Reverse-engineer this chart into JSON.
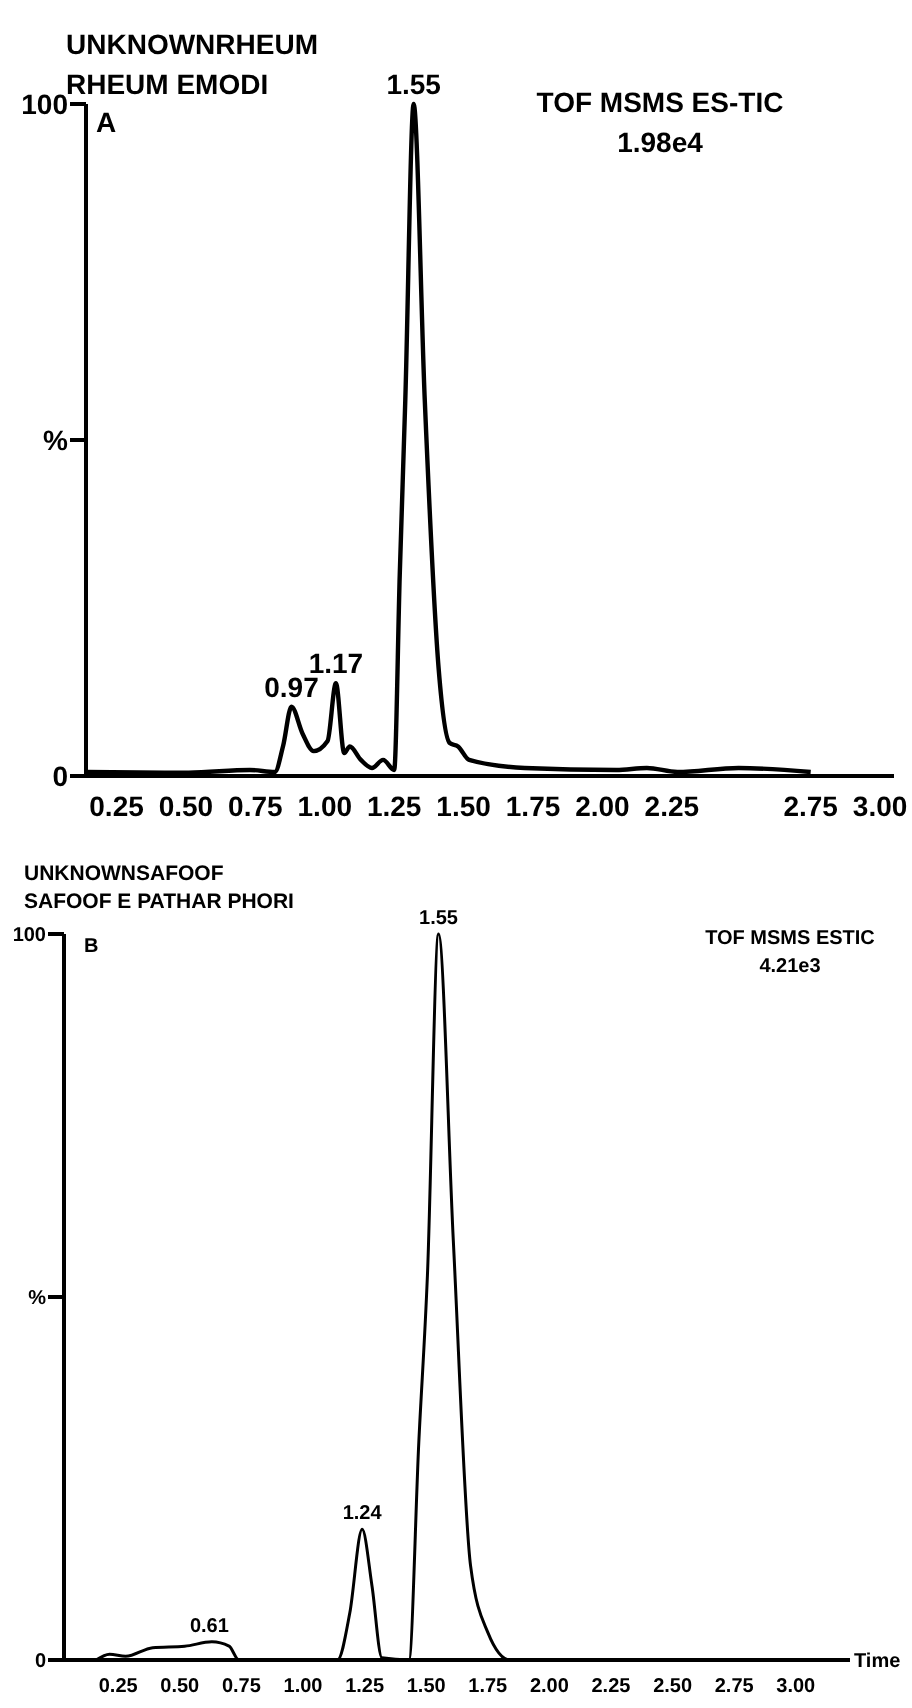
{
  "chart_data": [
    {
      "type": "line",
      "title": "UNKNOWNRHEUM",
      "subtitle": "RHEUM EMODI",
      "annotations": [
        "A",
        "TOF MSMS ES-TIC",
        "1.98e4",
        {
          "text": "1.55",
          "x": 1.32,
          "y": 100
        },
        {
          "text": "0.97",
          "x": 0.88,
          "y": 10.3
        },
        {
          "text": "1.17",
          "x": 1.04,
          "y": 13.8
        }
      ],
      "x": [
        0.14,
        0.51,
        0.73,
        0.82,
        0.85,
        0.88,
        0.92,
        0.96,
        1.01,
        1.04,
        1.07,
        1.09,
        1.13,
        1.17,
        1.21,
        1.25,
        1.27,
        1.29,
        1.32,
        1.36,
        1.41,
        1.45,
        1.48,
        1.52,
        1.72,
        2.05,
        2.16,
        2.27,
        2.49,
        2.75
      ],
      "series": [
        {
          "color": "#000000",
          "values": [
            0.6,
            0.5,
            0.9,
            0.6,
            4.5,
            10.3,
            6.3,
            3.7,
            5.2,
            13.8,
            3.4,
            4.4,
            2.4,
            1.2,
            2.4,
            0.9,
            30,
            56,
            100,
            56,
            16,
            4.9,
            4.4,
            2.4,
            1.2,
            0.9,
            1.2,
            0.6,
            1.2,
            0.6
          ]
        }
      ],
      "xlim": [
        0.14,
        3.05
      ],
      "xticks": [
        {
          "value": 0.25,
          "label": "0.25"
        },
        {
          "value": 0.5,
          "label": "0.50"
        },
        {
          "value": 0.75,
          "label": "0.75"
        },
        {
          "value": 1,
          "label": "1.00"
        },
        {
          "value": 1.25,
          "label": "1.25"
        },
        {
          "value": 1.5,
          "label": "1.50"
        },
        {
          "value": 1.75,
          "label": "1.75"
        },
        {
          "value": 2,
          "label": "2.00"
        },
        {
          "value": 2.25,
          "label": "2.25"
        },
        {
          "value": 2.75,
          "label": "2.75"
        },
        {
          "value": 3,
          "label": "3.00"
        }
      ],
      "ylim": [
        0,
        100
      ],
      "yticks": [
        {
          "value": 0,
          "label": "0"
        },
        {
          "value": 50,
          "label": "%"
        },
        {
          "value": 100,
          "label": "100"
        }
      ]
    },
    {
      "type": "line",
      "title": "UNKNOWNSAFOOF",
      "subtitle": "SAFOOF E PATHAR PHORI",
      "xlabel": "Time",
      "annotations": [
        "B",
        "TOF MSMS ESTIC",
        "4.21e3",
        {
          "text": "1.55",
          "x": 1.55,
          "y": 100
        },
        {
          "text": "1.24",
          "x": 1.24,
          "y": 18
        },
        {
          "text": "0.61",
          "x": 0.62,
          "y": 2.5
        }
      ],
      "x": [
        0.16,
        0.215,
        0.28,
        0.39,
        0.52,
        0.63,
        0.7,
        0.74,
        1.14,
        1.19,
        1.24,
        1.28,
        1.32,
        1.43,
        1.47,
        1.505,
        1.55,
        1.61,
        1.68,
        1.75,
        1.84,
        3.2
      ],
      "series": [
        {
          "color": "#000000",
          "values": [
            0,
            0.8,
            0.5,
            1.7,
            1.9,
            2.5,
            1.9,
            0,
            0,
            6.5,
            18,
            10.2,
            0.3,
            0,
            30,
            53,
            100,
            57.8,
            13,
            3.8,
            0,
            0
          ]
        }
      ],
      "xlim": [
        0.03,
        3.22
      ],
      "xticks": [
        {
          "value": 0.25,
          "label": "0.25"
        },
        {
          "value": 0.5,
          "label": "0.50"
        },
        {
          "value": 0.75,
          "label": "0.75"
        },
        {
          "value": 1,
          "label": "1.00"
        },
        {
          "value": 1.25,
          "label": "1.25"
        },
        {
          "value": 1.5,
          "label": "1.50"
        },
        {
          "value": 1.75,
          "label": "1.75"
        },
        {
          "value": 2,
          "label": "2.00"
        },
        {
          "value": 2.25,
          "label": "2.25"
        },
        {
          "value": 2.5,
          "label": "2.50"
        },
        {
          "value": 2.75,
          "label": "2.75"
        },
        {
          "value": 3,
          "label": "3.00"
        }
      ],
      "ylim": [
        0,
        100
      ],
      "yticks": [
        {
          "value": 0,
          "label": "0"
        },
        {
          "value": 50,
          "label": "%"
        },
        {
          "value": 100,
          "label": "100"
        }
      ]
    }
  ]
}
